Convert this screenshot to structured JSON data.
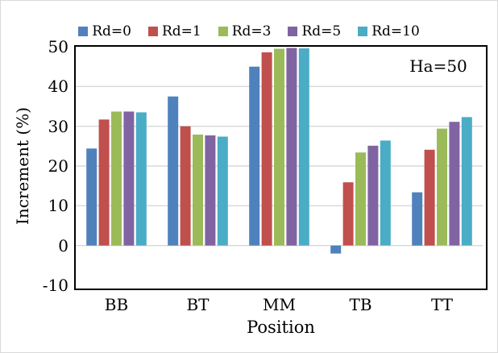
{
  "chart_data": {
    "type": "bar",
    "title": "",
    "xlabel": "Position",
    "ylabel": "Increment (%)",
    "annotation": "Ha=50",
    "categories": [
      "BB",
      "BT",
      "MM",
      "TB",
      "TT"
    ],
    "series": [
      {
        "name": "Rd=0",
        "color": "#4F81BD",
        "values": [
          24.4,
          37.5,
          45.0,
          -2.0,
          13.4
        ]
      },
      {
        "name": "Rd=1",
        "color": "#C0504D",
        "values": [
          31.7,
          30.0,
          48.6,
          15.9,
          24.1
        ]
      },
      {
        "name": "Rd=3",
        "color": "#9BBB59",
        "values": [
          33.7,
          27.9,
          49.5,
          23.4,
          29.4
        ]
      },
      {
        "name": "Rd=5",
        "color": "#8064A2",
        "values": [
          33.7,
          27.7,
          49.7,
          25.1,
          31.1
        ]
      },
      {
        "name": "Rd=10",
        "color": "#4BACC6",
        "values": [
          33.5,
          27.4,
          49.6,
          26.4,
          32.3
        ]
      }
    ],
    "ylim": [
      -10,
      50
    ],
    "yticks": [
      50,
      40,
      30,
      20,
      10,
      0,
      -10
    ],
    "grid": true,
    "gridline_color": "#D9D9D9",
    "axis_border_color": "#000000",
    "legend_position": "top"
  }
}
